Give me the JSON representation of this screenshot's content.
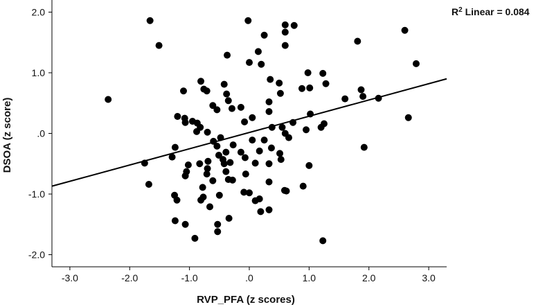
{
  "chart_data": {
    "type": "scatter",
    "title": "",
    "xlabel": "RVP_PFA (z scores)",
    "ylabel": "DSOA (z score)",
    "xlim": [
      -3.3,
      3.3
    ],
    "ylim": [
      -2.2,
      2.2
    ],
    "xticks": [
      -3.0,
      -2.0,
      -1.0,
      0.0,
      1.0,
      2.0,
      3.0
    ],
    "xtick_labels": [
      "-3.0",
      "-2.0",
      "-1.0",
      ".0",
      "1.0",
      "2.0",
      "3.0"
    ],
    "yticks": [
      2.0,
      1.0,
      0.0,
      -1.0,
      -2.0
    ],
    "ytick_labels": [
      "2.0",
      "1.0",
      ".0",
      "-1.0",
      "-2.0"
    ],
    "annotation": {
      "prefix": "R",
      "superscript": "2",
      "text": " Linear = 0.084"
    },
    "fit_line": {
      "x": [
        -3.3,
        3.3
      ],
      "y": [
        -0.87,
        0.9
      ]
    },
    "points": [
      [
        -1.66,
        1.86
      ],
      [
        -1.51,
        1.45
      ],
      [
        -0.02,
        1.86
      ],
      [
        0.6,
        1.79
      ],
      [
        0.75,
        1.78
      ],
      [
        0.6,
        1.67
      ],
      [
        0.25,
        1.62
      ],
      [
        2.6,
        1.7
      ],
      [
        1.81,
        1.52
      ],
      [
        2.79,
        1.15
      ],
      [
        0.6,
        1.45
      ],
      [
        -0.37,
        1.29
      ],
      [
        0.15,
        1.35
      ],
      [
        0.0,
        1.17
      ],
      [
        0.2,
        1.14
      ],
      [
        -2.36,
        0.56
      ],
      [
        -1.1,
        0.7
      ],
      [
        -0.81,
        0.86
      ],
      [
        -0.71,
        0.7
      ],
      [
        -0.76,
        0.73
      ],
      [
        -0.42,
        0.81
      ],
      [
        -0.38,
        0.65
      ],
      [
        -0.35,
        0.54
      ],
      [
        -0.61,
        0.46
      ],
      [
        -0.54,
        0.39
      ],
      [
        -0.29,
        0.41
      ],
      [
        -0.14,
        0.43
      ],
      [
        0.35,
        0.89
      ],
      [
        0.5,
        0.83
      ],
      [
        0.52,
        0.66
      ],
      [
        0.33,
        0.52
      ],
      [
        0.33,
        0.36
      ],
      [
        0.98,
        1.0
      ],
      [
        1.23,
        0.99
      ],
      [
        0.88,
        0.74
      ],
      [
        1.01,
        0.75
      ],
      [
        1.28,
        0.82
      ],
      [
        1.6,
        0.57
      ],
      [
        1.9,
        0.61
      ],
      [
        2.16,
        0.58
      ],
      [
        1.87,
        0.72
      ],
      [
        -1.2,
        0.28
      ],
      [
        -1.08,
        0.25
      ],
      [
        -1.07,
        0.18
      ],
      [
        -0.95,
        0.2
      ],
      [
        -0.87,
        0.17
      ],
      [
        -0.82,
        0.1
      ],
      [
        -0.88,
        0.03
      ],
      [
        -0.7,
        0.02
      ],
      [
        -0.08,
        0.19
      ],
      [
        0.05,
        0.26
      ],
      [
        0.38,
        0.1
      ],
      [
        0.55,
        0.1
      ],
      [
        0.6,
        0.0
      ],
      [
        0.66,
        -0.07
      ],
      [
        0.73,
        0.18
      ],
      [
        0.95,
        0.06
      ],
      [
        1.02,
        0.32
      ],
      [
        1.2,
        0.1
      ],
      [
        1.25,
        0.16
      ],
      [
        2.66,
        0.26
      ],
      [
        -1.24,
        -0.23
      ],
      [
        -1.29,
        -0.39
      ],
      [
        -1.02,
        -0.52
      ],
      [
        -1.05,
        -0.63
      ],
      [
        -1.07,
        -0.7
      ],
      [
        -0.83,
        -0.5
      ],
      [
        -0.69,
        -0.46
      ],
      [
        -0.51,
        -0.36
      ],
      [
        -0.54,
        -0.21
      ],
      [
        -0.44,
        -0.43
      ],
      [
        -0.42,
        -0.5
      ],
      [
        -0.39,
        -0.31
      ],
      [
        -0.32,
        -0.48
      ],
      [
        -0.27,
        -0.19
      ],
      [
        -0.48,
        -0.07
      ],
      [
        -0.6,
        -0.13
      ],
      [
        -0.14,
        -0.31
      ],
      [
        -0.07,
        -0.4
      ],
      [
        0.05,
        -0.11
      ],
      [
        0.1,
        -0.49
      ],
      [
        0.17,
        -0.29
      ],
      [
        0.25,
        -0.11
      ],
      [
        0.33,
        -0.5
      ],
      [
        0.37,
        -0.24
      ],
      [
        0.51,
        -0.33
      ],
      [
        0.53,
        -0.43
      ],
      [
        1.0,
        -0.53
      ],
      [
        1.92,
        -0.23
      ],
      [
        -1.75,
        -0.49
      ],
      [
        -1.68,
        -0.84
      ],
      [
        -0.7,
        -0.58
      ],
      [
        -0.71,
        -0.67
      ],
      [
        -0.78,
        -0.89
      ],
      [
        -0.61,
        -0.78
      ],
      [
        -0.39,
        -0.63
      ],
      [
        -0.35,
        -0.76
      ],
      [
        -0.28,
        -0.77
      ],
      [
        -0.06,
        -0.67
      ],
      [
        0.33,
        -0.8
      ],
      [
        0.59,
        -0.94
      ],
      [
        0.62,
        -0.95
      ],
      [
        0.9,
        -0.87
      ],
      [
        -1.25,
        -1.02
      ],
      [
        -1.21,
        -1.1
      ],
      [
        -0.77,
        -1.05
      ],
      [
        -0.81,
        -1.1
      ],
      [
        -0.5,
        -1.02
      ],
      [
        -0.09,
        -0.97
      ],
      [
        0.0,
        -0.98
      ],
      [
        0.1,
        -1.11
      ],
      [
        0.17,
        -1.08
      ],
      [
        0.19,
        -1.29
      ],
      [
        0.33,
        -1.26
      ],
      [
        -1.24,
        -1.44
      ],
      [
        -1.07,
        -1.5
      ],
      [
        -0.66,
        -1.21
      ],
      [
        -0.53,
        -1.5
      ],
      [
        -0.53,
        -1.62
      ],
      [
        -0.34,
        -1.4
      ],
      [
        -0.91,
        -1.73
      ],
      [
        1.23,
        -1.77
      ]
    ]
  }
}
